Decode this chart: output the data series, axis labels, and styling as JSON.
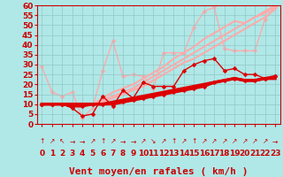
{
  "background_color": "#b0e8e8",
  "grid_color": "#90c8c8",
  "xlabel": "Vent moyen/en rafales ( km/h )",
  "xlim": [
    -0.5,
    23.5
  ],
  "ylim": [
    0,
    60
  ],
  "yticks": [
    0,
    5,
    10,
    15,
    20,
    25,
    30,
    35,
    40,
    45,
    50,
    55,
    60
  ],
  "xticks": [
    0,
    1,
    2,
    3,
    4,
    5,
    6,
    7,
    8,
    9,
    10,
    11,
    12,
    13,
    14,
    15,
    16,
    17,
    18,
    19,
    20,
    21,
    22,
    23
  ],
  "lines": [
    {
      "x": [
        0,
        1,
        2,
        3,
        4,
        5,
        6,
        7,
        8,
        9,
        10,
        11,
        12,
        13,
        14,
        15,
        16,
        17,
        18,
        19,
        20,
        21,
        22,
        23
      ],
      "y": [
        10,
        10,
        10,
        9,
        9,
        10,
        10,
        10,
        11,
        12,
        13,
        14,
        15,
        16,
        17,
        18,
        19,
        21,
        22,
        23,
        22,
        22,
        23,
        24
      ],
      "color": "#dd0000",
      "lw": 2.2,
      "marker": "D",
      "ms": 2.5,
      "zorder": 6
    },
    {
      "x": [
        0,
        1,
        2,
        3,
        4,
        5,
        6,
        7,
        8,
        9,
        10,
        11,
        12,
        13,
        14,
        15,
        16,
        17,
        18,
        19,
        20,
        21,
        22,
        23
      ],
      "y": [
        10,
        10,
        10,
        8,
        4,
        5,
        14,
        9,
        17,
        13,
        21,
        19,
        19,
        19,
        27,
        30,
        32,
        33,
        27,
        28,
        25,
        25,
        23,
        24
      ],
      "color": "#dd0000",
      "lw": 1.0,
      "marker": "D",
      "ms": 2.5,
      "zorder": 5
    },
    {
      "x": [
        0,
        1,
        2,
        3,
        4,
        5,
        6,
        7,
        8,
        9,
        10,
        11,
        12,
        13,
        14,
        15,
        16,
        17,
        18,
        19,
        20,
        21,
        22,
        23
      ],
      "y": [
        10,
        10,
        10,
        10,
        10,
        10,
        10,
        11,
        12,
        13,
        14,
        15,
        16,
        17,
        18,
        19,
        20,
        21,
        22,
        23,
        22,
        22,
        23,
        23
      ],
      "color": "#dd0000",
      "lw": 2.5,
      "marker": null,
      "ms": 0,
      "zorder": 4
    },
    {
      "x": [
        0,
        1,
        2,
        3,
        4,
        5,
        6,
        7,
        8,
        9,
        10,
        11,
        12,
        13,
        14,
        15,
        16,
        17,
        18,
        19,
        20,
        21,
        22,
        23
      ],
      "y": [
        10,
        10,
        10,
        10,
        10,
        10,
        11,
        13,
        15,
        17,
        19,
        22,
        25,
        28,
        31,
        33,
        36,
        39,
        42,
        45,
        48,
        51,
        54,
        58
      ],
      "color": "#ffaaaa",
      "lw": 1.5,
      "marker": null,
      "ms": 0,
      "zorder": 2
    },
    {
      "x": [
        0,
        1,
        2,
        3,
        4,
        5,
        6,
        7,
        8,
        9,
        10,
        11,
        12,
        13,
        14,
        15,
        16,
        17,
        18,
        19,
        20,
        21,
        22,
        23
      ],
      "y": [
        10,
        10,
        10,
        10,
        10,
        10,
        12,
        14,
        16,
        18,
        21,
        24,
        27,
        30,
        33,
        36,
        39,
        42,
        45,
        48,
        51,
        54,
        57,
        60
      ],
      "color": "#ffaaaa",
      "lw": 1.5,
      "marker": null,
      "ms": 0,
      "zorder": 2
    },
    {
      "x": [
        0,
        1,
        2,
        3,
        4,
        5,
        6,
        7,
        8,
        9,
        10,
        11,
        12,
        13,
        14,
        15,
        16,
        17,
        18,
        19,
        20,
        21,
        22,
        23
      ],
      "y": [
        29,
        16,
        14,
        16,
        3,
        8,
        27,
        42,
        24,
        25,
        24,
        18,
        36,
        36,
        36,
        49,
        57,
        59,
        38,
        37,
        37,
        37,
        53,
        59
      ],
      "color": "#ffaaaa",
      "lw": 1.0,
      "marker": "D",
      "ms": 2.5,
      "zorder": 1
    },
    {
      "x": [
        0,
        1,
        2,
        3,
        4,
        5,
        6,
        7,
        8,
        9,
        10,
        11,
        12,
        13,
        14,
        15,
        16,
        17,
        18,
        19,
        20,
        21,
        22,
        23
      ],
      "y": [
        10,
        10,
        10,
        10,
        10,
        10,
        13,
        16,
        18,
        20,
        23,
        26,
        29,
        33,
        36,
        39,
        43,
        46,
        49,
        52,
        51,
        54,
        56,
        59
      ],
      "color": "#ffaaaa",
      "lw": 1.5,
      "marker": null,
      "ms": 0,
      "zorder": 2
    }
  ],
  "arrow_symbols": [
    "↑",
    "↗",
    "↖",
    "→",
    "→",
    "↗",
    "↑",
    "↗",
    "→",
    "→",
    "↗",
    "↘",
    "↗",
    "↑",
    "↗",
    "↑",
    "↗",
    "↗",
    "↗",
    "↗",
    "↗",
    "↗",
    "↗",
    "→"
  ],
  "xlabel_fontsize": 8,
  "tick_fontsize": 6.5,
  "arrow_fontsize": 5.5
}
